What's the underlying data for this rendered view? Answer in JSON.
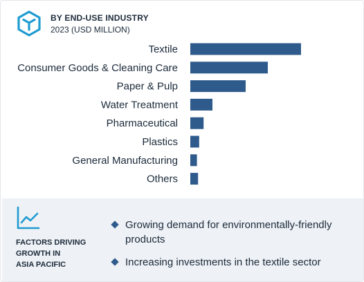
{
  "header": {
    "title": "BY END-USE INDUSTRY",
    "subtitle": "2023 (USD MILLION)",
    "logo_icon": "hexagon-cube-logo-icon"
  },
  "colors": {
    "bar": "#2f5b8c",
    "accent": "#1f9bd1",
    "text": "#1b2a3a",
    "panel": "#eef1f5"
  },
  "chart_data": {
    "type": "bar",
    "orientation": "horizontal",
    "title": "BY END-USE INDUSTRY",
    "subtitle": "2023 (USD MILLION)",
    "categories": [
      "Textile",
      "Consumer Goods & Cleaning Care",
      "Paper & Pulp",
      "Water Treatment",
      "Pharmaceutical",
      "Plastics",
      "General Manufacturing",
      "Others"
    ],
    "values": [
      100,
      70,
      50,
      20,
      12,
      8,
      6,
      7
    ],
    "value_axis_visible": false,
    "grid": false,
    "legend": "none"
  },
  "factors": {
    "icon": "trend-line-icon",
    "title_lines": [
      "FACTORS DRIVING",
      "GROWTH IN",
      "ASIA PACIFIC"
    ],
    "items": [
      "Growing demand for environmentally-friendly products",
      "Increasing investments in the textile sector"
    ]
  }
}
